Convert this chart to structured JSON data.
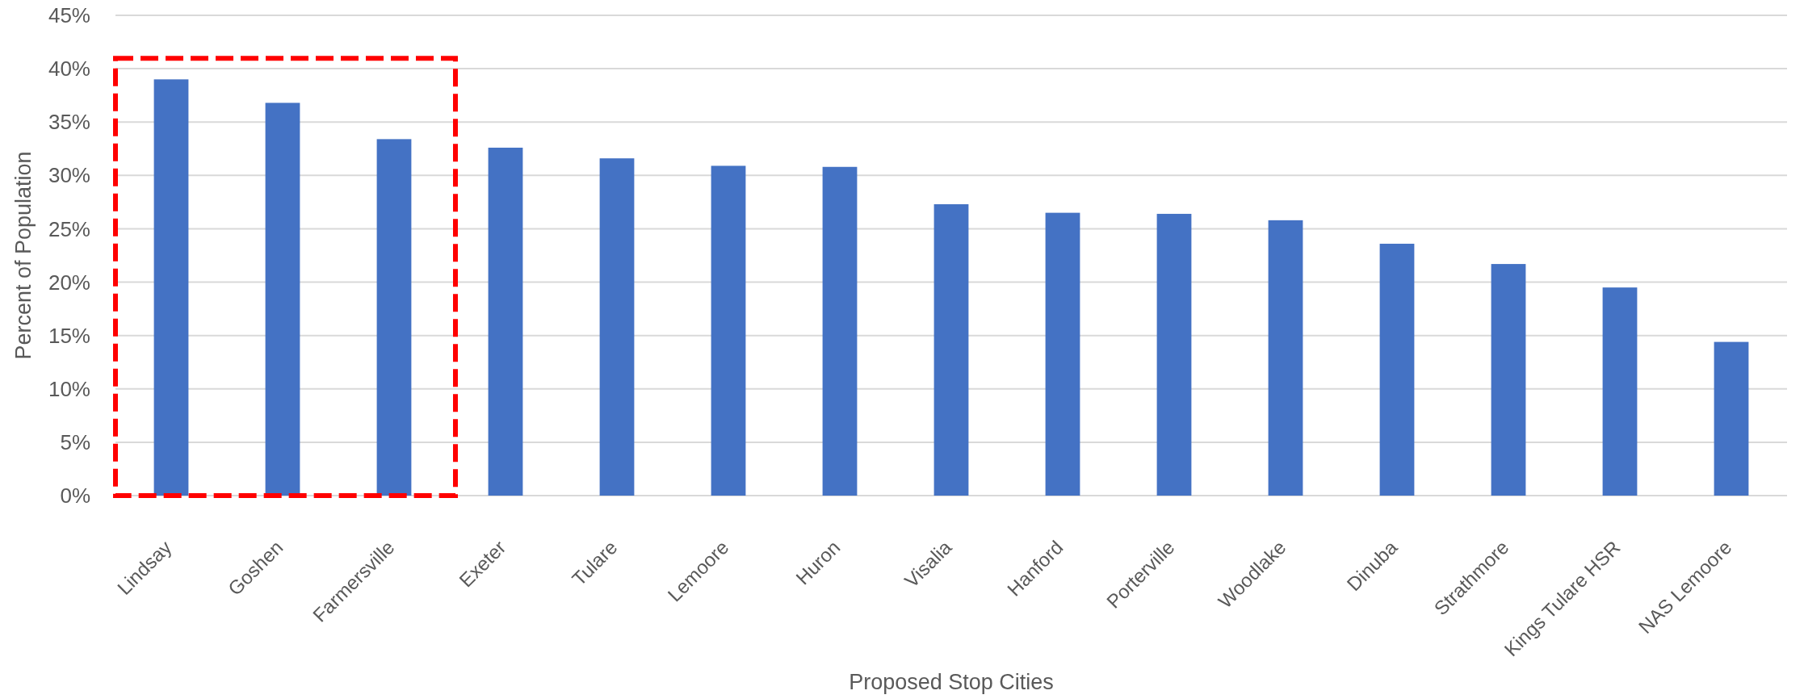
{
  "chart_data": {
    "type": "bar",
    "xlabel": "Proposed Stop Cities",
    "ylabel": "Percent of Population",
    "categories": [
      "Lindsay",
      "Goshen",
      "Farmersville",
      "Exeter",
      "Tulare",
      "Lemoore",
      "Huron",
      "Visalia",
      "Hanford",
      "Porterville",
      "Woodlake",
      "Dinuba",
      "Strathmore",
      "Kings Tulare HSR",
      "NAS Lemoore"
    ],
    "values": [
      39.0,
      36.8,
      33.4,
      32.6,
      31.6,
      30.9,
      30.8,
      27.3,
      26.5,
      26.4,
      25.8,
      23.6,
      21.7,
      19.5,
      14.4
    ],
    "color": "#4472c4",
    "ylim": [
      0,
      45
    ],
    "yticks": [
      {
        "value": 0,
        "label": "0%"
      },
      {
        "value": 5,
        "label": "5%"
      },
      {
        "value": 10,
        "label": "10%"
      },
      {
        "value": 15,
        "label": "15%"
      },
      {
        "value": 20,
        "label": "20%"
      },
      {
        "value": 25,
        "label": "25%"
      },
      {
        "value": 30,
        "label": "30%"
      },
      {
        "value": 35,
        "label": "35%"
      },
      {
        "value": 40,
        "label": "40%"
      },
      {
        "value": 45,
        "label": "45%"
      }
    ],
    "grid": "y"
  }
}
